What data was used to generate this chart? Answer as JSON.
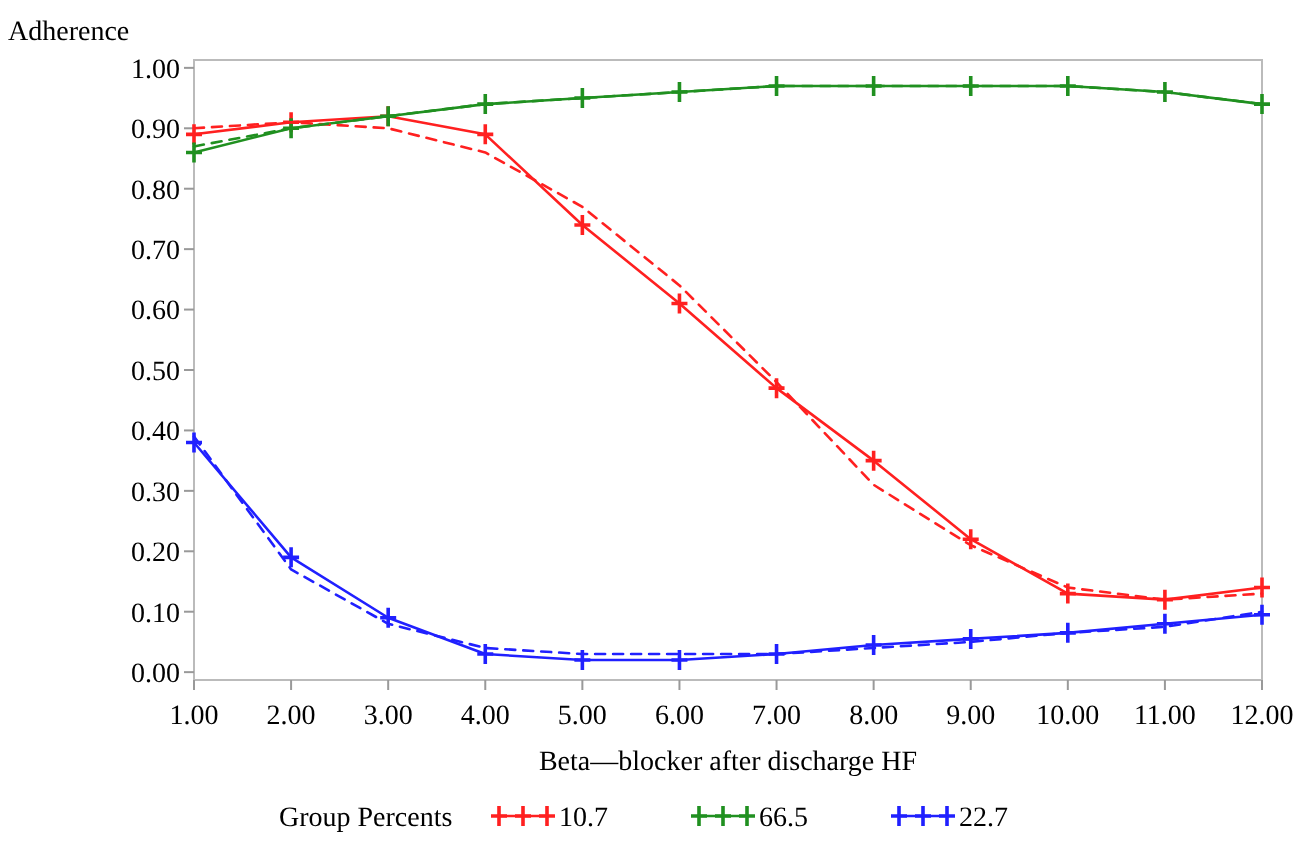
{
  "chart_data": {
    "type": "line",
    "ylabel": "Adherence",
    "xlabel": "Beta—blocker after discharge HF",
    "legend_title": "Group Percents",
    "legend": "bottom",
    "grid": false,
    "x": [
      1,
      2,
      3,
      4,
      5,
      6,
      7,
      8,
      9,
      10,
      11,
      12
    ],
    "xlim": [
      1,
      12
    ],
    "xticks": [
      {
        "value": 1,
        "label": "1.00"
      },
      {
        "value": 2,
        "label": "2.00"
      },
      {
        "value": 3,
        "label": "3.00"
      },
      {
        "value": 4,
        "label": "4.00"
      },
      {
        "value": 5,
        "label": "5.00"
      },
      {
        "value": 6,
        "label": "6.00"
      },
      {
        "value": 7,
        "label": "7.00"
      },
      {
        "value": 8,
        "label": "8.00"
      },
      {
        "value": 9,
        "label": "9.00"
      },
      {
        "value": 10,
        "label": "10.00"
      },
      {
        "value": 11,
        "label": "11.00"
      },
      {
        "value": 12,
        "label": "12.00"
      }
    ],
    "ylim": [
      -0.013,
      1.013
    ],
    "yticks": [
      {
        "value": 0,
        "label": "0.00"
      },
      {
        "value": 0.1,
        "label": "0.10"
      },
      {
        "value": 0.2,
        "label": "0.20"
      },
      {
        "value": 0.3,
        "label": "0.30"
      },
      {
        "value": 0.4,
        "label": "0.40"
      },
      {
        "value": 0.5,
        "label": "0.50"
      },
      {
        "value": 0.6,
        "label": "0.60"
      },
      {
        "value": 0.7,
        "label": "0.70"
      },
      {
        "value": 0.8,
        "label": "0.80"
      },
      {
        "value": 0.9,
        "label": "0.90"
      },
      {
        "value": 1,
        "label": "1.00"
      }
    ],
    "series": [
      {
        "name": "10.7",
        "color": "#ff2020",
        "marker": "cross",
        "line_style": "solid",
        "values": [
          0.89,
          0.91,
          0.92,
          0.89,
          0.74,
          0.61,
          0.47,
          0.35,
          0.22,
          0.13,
          0.12,
          0.14
        ]
      },
      {
        "name": "66.5",
        "color": "#209020",
        "marker": "cross",
        "line_style": "solid",
        "values": [
          0.86,
          0.9,
          0.92,
          0.94,
          0.95,
          0.96,
          0.97,
          0.97,
          0.97,
          0.97,
          0.96,
          0.94
        ]
      },
      {
        "name": "22.7",
        "color": "#2020ff",
        "marker": "cross",
        "line_style": "solid",
        "values": [
          0.38,
          0.19,
          0.09,
          0.03,
          0.02,
          0.02,
          0.03,
          0.045,
          0.055,
          0.065,
          0.08,
          0.095
        ]
      },
      {
        "color": "#ff2020",
        "marker": "none",
        "line_style": "dashed",
        "values": [
          0.9,
          0.91,
          0.9,
          0.86,
          0.77,
          0.64,
          0.48,
          0.31,
          0.21,
          0.14,
          0.12,
          0.13
        ]
      },
      {
        "color": "#209020",
        "marker": "none",
        "line_style": "dashed",
        "values": [
          0.87,
          0.9,
          0.92,
          0.94,
          0.95,
          0.96,
          0.97,
          0.97,
          0.97,
          0.97,
          0.96,
          0.94
        ]
      },
      {
        "color": "#2020ff",
        "marker": "none",
        "line_style": "dashed",
        "values": [
          0.39,
          0.17,
          0.08,
          0.04,
          0.03,
          0.03,
          0.03,
          0.04,
          0.05,
          0.065,
          0.075,
          0.1
        ]
      }
    ]
  }
}
